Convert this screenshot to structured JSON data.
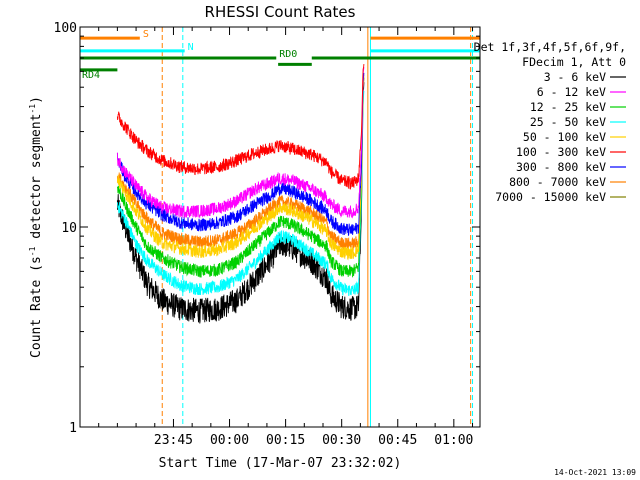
{
  "chart_data": {
    "type": "line",
    "title": "RHESSI Count Rates",
    "xlabel": "Start Time (17-Mar-07 23:32:02)",
    "ylabel_main": "Count Rate (s",
    "ylabel_exp": "-1",
    "ylabel_tail": " detector segment",
    "ylabel_exp2": "-1",
    "ylabel_close": ")",
    "yscale": "log",
    "ylim": [
      1,
      100
    ],
    "xlim_minutes": [
      -12,
      95
    ],
    "x_ticks": [
      {
        "label": "23:45",
        "minutes": 13
      },
      {
        "label": "00:00",
        "minutes": 28
      },
      {
        "label": "00:15",
        "minutes": 43
      },
      {
        "label": "00:30",
        "minutes": 58
      },
      {
        "label": "00:45",
        "minutes": 73
      },
      {
        "label": "01:00",
        "minutes": 88
      }
    ],
    "y_ticks": [
      {
        "label": "1",
        "value": 1
      },
      {
        "label": "10",
        "value": 10
      },
      {
        "label": "100",
        "value": 100
      }
    ],
    "legend_header": [
      "Det 1f,3f,4f,5f,6f,9f,",
      "FDecim 1, Att 0"
    ],
    "series": [
      {
        "name": "3 - 6 keV",
        "color": "#000000",
        "points": [
          [
            -2,
            13
          ],
          [
            0,
            10
          ],
          [
            3,
            7
          ],
          [
            6,
            5.2
          ],
          [
            10,
            4.3
          ],
          [
            15,
            3.9
          ],
          [
            20,
            3.8
          ],
          [
            25,
            3.9
          ],
          [
            30,
            4.3
          ],
          [
            35,
            5.5
          ],
          [
            40,
            7.3
          ],
          [
            41,
            8.0
          ],
          [
            42,
            8.2
          ],
          [
            45,
            7.8
          ],
          [
            50,
            6.7
          ],
          [
            54,
            5.5
          ],
          [
            55,
            4.6
          ],
          [
            58,
            4.0
          ],
          [
            61,
            3.9
          ],
          [
            62.5,
            4.0
          ],
          [
            63.3,
            12
          ],
          [
            63.7,
            45
          ],
          [
            64,
            55
          ]
        ]
      },
      {
        "name": "6 - 12 keV",
        "color": "#ff00ff",
        "points": [
          [
            -2,
            22
          ],
          [
            0,
            19
          ],
          [
            3,
            16
          ],
          [
            6,
            14
          ],
          [
            10,
            12.5
          ],
          [
            15,
            12
          ],
          [
            20,
            12
          ],
          [
            25,
            12.4
          ],
          [
            30,
            13.5
          ],
          [
            35,
            15.5
          ],
          [
            40,
            17
          ],
          [
            41,
            17.5
          ],
          [
            42,
            17.5
          ],
          [
            45,
            17
          ],
          [
            50,
            15.5
          ],
          [
            54,
            14
          ],
          [
            55,
            13
          ],
          [
            58,
            12
          ],
          [
            61,
            12
          ],
          [
            62.5,
            12.5
          ],
          [
            63.3,
            25
          ],
          [
            63.7,
            58
          ],
          [
            64,
            65
          ]
        ]
      },
      {
        "name": "12 - 25 keV",
        "color": "#00d000",
        "points": [
          [
            -2,
            16
          ],
          [
            0,
            13
          ],
          [
            3,
            10
          ],
          [
            6,
            8
          ],
          [
            10,
            7
          ],
          [
            15,
            6.3
          ],
          [
            20,
            6
          ],
          [
            25,
            6.1
          ],
          [
            30,
            6.7
          ],
          [
            35,
            8.2
          ],
          [
            40,
            10
          ],
          [
            41,
            10.5
          ],
          [
            42,
            10.7
          ],
          [
            45,
            10.2
          ],
          [
            50,
            9
          ],
          [
            54,
            8
          ],
          [
            55,
            6.8
          ],
          [
            58,
            6
          ],
          [
            61,
            6
          ],
          [
            62.5,
            6.3
          ],
          [
            63.3,
            16
          ],
          [
            63.7,
            48
          ],
          [
            64,
            58
          ]
        ]
      },
      {
        "name": "25 - 50 keV",
        "color": "#00ffff",
        "points": [
          [
            -2,
            13
          ],
          [
            0,
            11
          ],
          [
            3,
            8.2
          ],
          [
            6,
            6.8
          ],
          [
            10,
            5.8
          ],
          [
            15,
            5.1
          ],
          [
            20,
            4.9
          ],
          [
            25,
            5
          ],
          [
            30,
            5.5
          ],
          [
            35,
            6.7
          ],
          [
            40,
            8.4
          ],
          [
            41,
            8.9
          ],
          [
            42,
            9
          ],
          [
            45,
            8.6
          ],
          [
            50,
            7.4
          ],
          [
            54,
            6.5
          ],
          [
            55,
            5.6
          ],
          [
            58,
            4.9
          ],
          [
            61,
            4.8
          ],
          [
            62.5,
            5
          ],
          [
            63.3,
            14
          ],
          [
            63.7,
            40
          ],
          [
            64,
            50
          ]
        ]
      },
      {
        "name": "50 - 100 keV",
        "color": "#ffd000",
        "points": [
          [
            -2,
            17.5
          ],
          [
            0,
            15
          ],
          [
            3,
            12
          ],
          [
            6,
            9.8
          ],
          [
            10,
            8.3
          ],
          [
            15,
            7.8
          ],
          [
            20,
            7.5
          ],
          [
            25,
            7.7
          ],
          [
            30,
            8.4
          ],
          [
            35,
            10
          ],
          [
            40,
            11.8
          ],
          [
            41,
            12.4
          ],
          [
            42,
            12.5
          ],
          [
            45,
            12
          ],
          [
            50,
            10.8
          ],
          [
            54,
            9.5
          ],
          [
            55,
            8.3
          ],
          [
            58,
            7.5
          ],
          [
            61,
            7.4
          ],
          [
            62.5,
            7.7
          ],
          [
            63.3,
            17
          ],
          [
            63.7,
            50
          ],
          [
            64,
            60
          ]
        ]
      },
      {
        "name": "100 - 300 keV",
        "color": "#ff0000",
        "points": [
          [
            -2,
            36
          ],
          [
            0,
            32
          ],
          [
            3,
            27
          ],
          [
            6,
            24
          ],
          [
            10,
            21.5
          ],
          [
            15,
            20
          ],
          [
            20,
            19.5
          ],
          [
            25,
            20
          ],
          [
            30,
            21.5
          ],
          [
            35,
            23.5
          ],
          [
            40,
            25
          ],
          [
            41,
            25.5
          ],
          [
            42,
            25.5
          ],
          [
            45,
            24.5
          ],
          [
            50,
            23
          ],
          [
            54,
            21
          ],
          [
            55,
            19
          ],
          [
            58,
            17
          ],
          [
            61,
            16.5
          ],
          [
            62.5,
            17.5
          ],
          [
            63.3,
            30
          ],
          [
            63.7,
            60
          ],
          [
            64,
            66
          ]
        ]
      },
      {
        "name": "300 - 800 keV",
        "color": "#0000ff",
        "points": [
          [
            -2,
            22
          ],
          [
            0,
            18
          ],
          [
            3,
            15
          ],
          [
            6,
            13
          ],
          [
            10,
            11.5
          ],
          [
            15,
            10.5
          ],
          [
            20,
            10.2
          ],
          [
            25,
            10.5
          ],
          [
            30,
            11.3
          ],
          [
            35,
            13
          ],
          [
            40,
            14.8
          ],
          [
            41,
            15.5
          ],
          [
            42,
            15.6
          ],
          [
            45,
            15
          ],
          [
            50,
            13.5
          ],
          [
            54,
            12
          ],
          [
            55,
            10.8
          ],
          [
            58,
            9.8
          ],
          [
            61,
            9.6
          ],
          [
            62.5,
            10
          ],
          [
            63.3,
            20
          ],
          [
            63.7,
            52
          ],
          [
            64,
            60
          ]
        ]
      },
      {
        "name": "800 - 7000 keV",
        "color": "#ff8000",
        "points": [
          [
            -2,
            18
          ],
          [
            0,
            16
          ],
          [
            3,
            13
          ],
          [
            6,
            11
          ],
          [
            10,
            9.3
          ],
          [
            15,
            8.7
          ],
          [
            20,
            8.4
          ],
          [
            25,
            8.6
          ],
          [
            30,
            9.3
          ],
          [
            35,
            10.8
          ],
          [
            40,
            12.8
          ],
          [
            41,
            13.3
          ],
          [
            42,
            13.4
          ],
          [
            45,
            13
          ],
          [
            50,
            11.8
          ],
          [
            54,
            10.5
          ],
          [
            55,
            9
          ],
          [
            58,
            8.3
          ],
          [
            61,
            8.2
          ],
          [
            62.5,
            8.5
          ],
          [
            63.3,
            18
          ],
          [
            63.7,
            48
          ],
          [
            64,
            58
          ]
        ]
      },
      {
        "name": "7000 - 15000 keV",
        "color": "#808000",
        "points": []
      }
    ],
    "vertical_lines": [
      {
        "minutes": 10,
        "color": "#ff8000",
        "style": "dashed"
      },
      {
        "minutes": 15.5,
        "color": "#00ffff",
        "style": "dashed"
      },
      {
        "minutes": 65,
        "color": "#ff8000",
        "style": "solid"
      },
      {
        "minutes": 65.7,
        "color": "#00ffff",
        "style": "solid"
      },
      {
        "minutes": 92.5,
        "color": "#ff8000",
        "style": "dashed"
      },
      {
        "minutes": 93,
        "color": "#00ffff",
        "style": "dashed"
      }
    ],
    "flag_bars": [
      {
        "label": "S",
        "color": "#ff8000",
        "segments": [
          [
            -12,
            4
          ],
          [
            65.7,
            95
          ]
        ],
        "value": 88
      },
      {
        "label": "N",
        "color": "#00ffff",
        "segments": [
          [
            -12,
            16
          ],
          [
            65.7,
            95
          ]
        ],
        "value": 76
      },
      {
        "label": "RD0",
        "color": "#008000",
        "segments": [
          [
            -12,
            40.5
          ],
          [
            50,
            95
          ]
        ],
        "value": 70
      },
      {
        "label": "",
        "color": "#008000",
        "segments": [
          [
            41,
            50
          ]
        ],
        "value": 65
      },
      {
        "label": "RD4",
        "color": "#008000",
        "segments": [
          [
            -12,
            -2
          ]
        ],
        "value": 61
      }
    ]
  },
  "footer_timestamp": "14-Oct-2021 13:09"
}
